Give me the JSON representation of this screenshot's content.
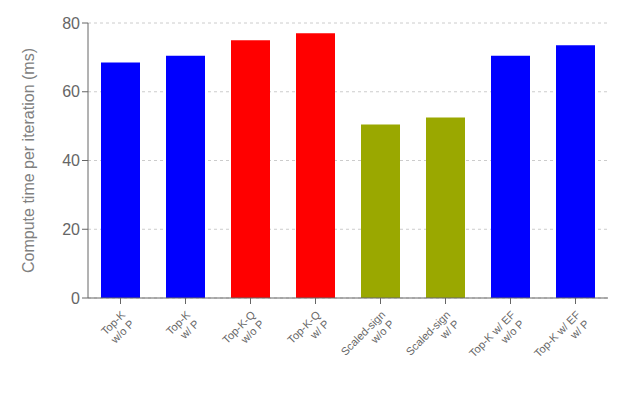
{
  "chart_data": {
    "type": "bar",
    "categories": [
      "Top-K\nw/o P",
      "Top-K\nw/ P",
      "Top-K-Q\nw/o P",
      "Top-K-Q\nw/ P",
      "Scaled-sign\nw/o P",
      "Scaled-sign\nw/ P",
      "Top-K w/ EF\nw/o P",
      "Top-K w/ EF\nw/ P"
    ],
    "values": [
      68.5,
      70.5,
      75.0,
      77.0,
      50.5,
      52.5,
      70.5,
      73.5
    ],
    "colors": [
      "#0000FF",
      "#0000FF",
      "#FF0000",
      "#FF0000",
      "#9AA800",
      "#9AA800",
      "#0000FF",
      "#0000FF"
    ],
    "ylabel": "Compute time per iteration (ms)",
    "ylim": [
      0,
      80
    ],
    "yticks": [
      0,
      20,
      40,
      60,
      80
    ],
    "grid": true
  }
}
